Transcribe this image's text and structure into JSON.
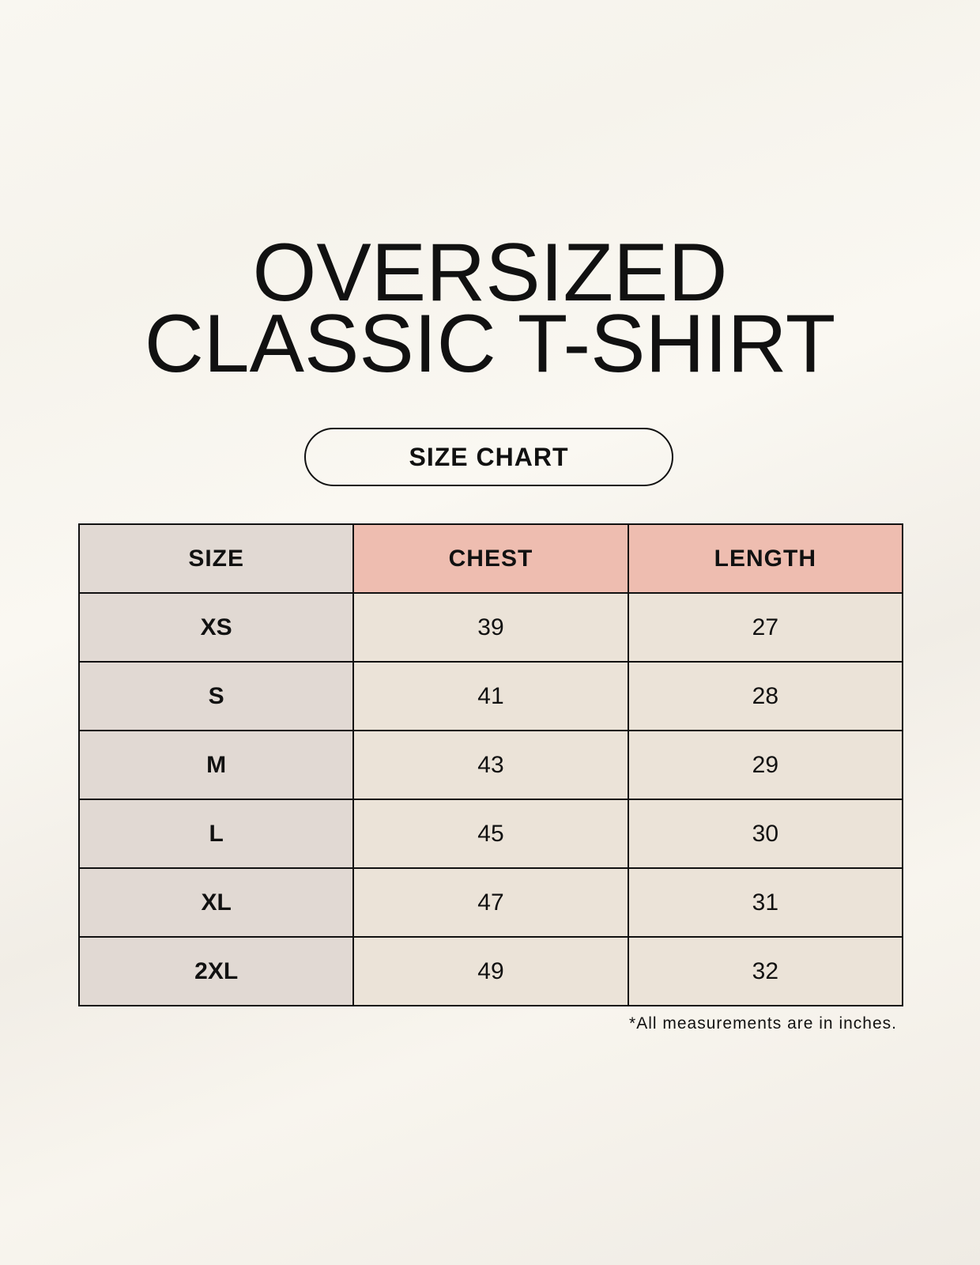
{
  "title": {
    "line1": "OVERSIZED",
    "line2": "CLASSIC T-SHIRT"
  },
  "badge": "SIZE CHART",
  "table": {
    "headers": [
      "SIZE",
      "CHEST",
      "LENGTH"
    ],
    "rows": [
      [
        "XS",
        "39",
        "27"
      ],
      [
        "S",
        "41",
        "28"
      ],
      [
        "M",
        "43",
        "29"
      ],
      [
        "L",
        "45",
        "30"
      ],
      [
        "XL",
        "47",
        "31"
      ],
      [
        "2XL",
        "49",
        "32"
      ]
    ]
  },
  "footnote": "*All measurements are in inches.",
  "colors": {
    "size_column": "#e1d9d3",
    "header_accent": "#eebdb0",
    "cell": "#ebe3d8"
  }
}
